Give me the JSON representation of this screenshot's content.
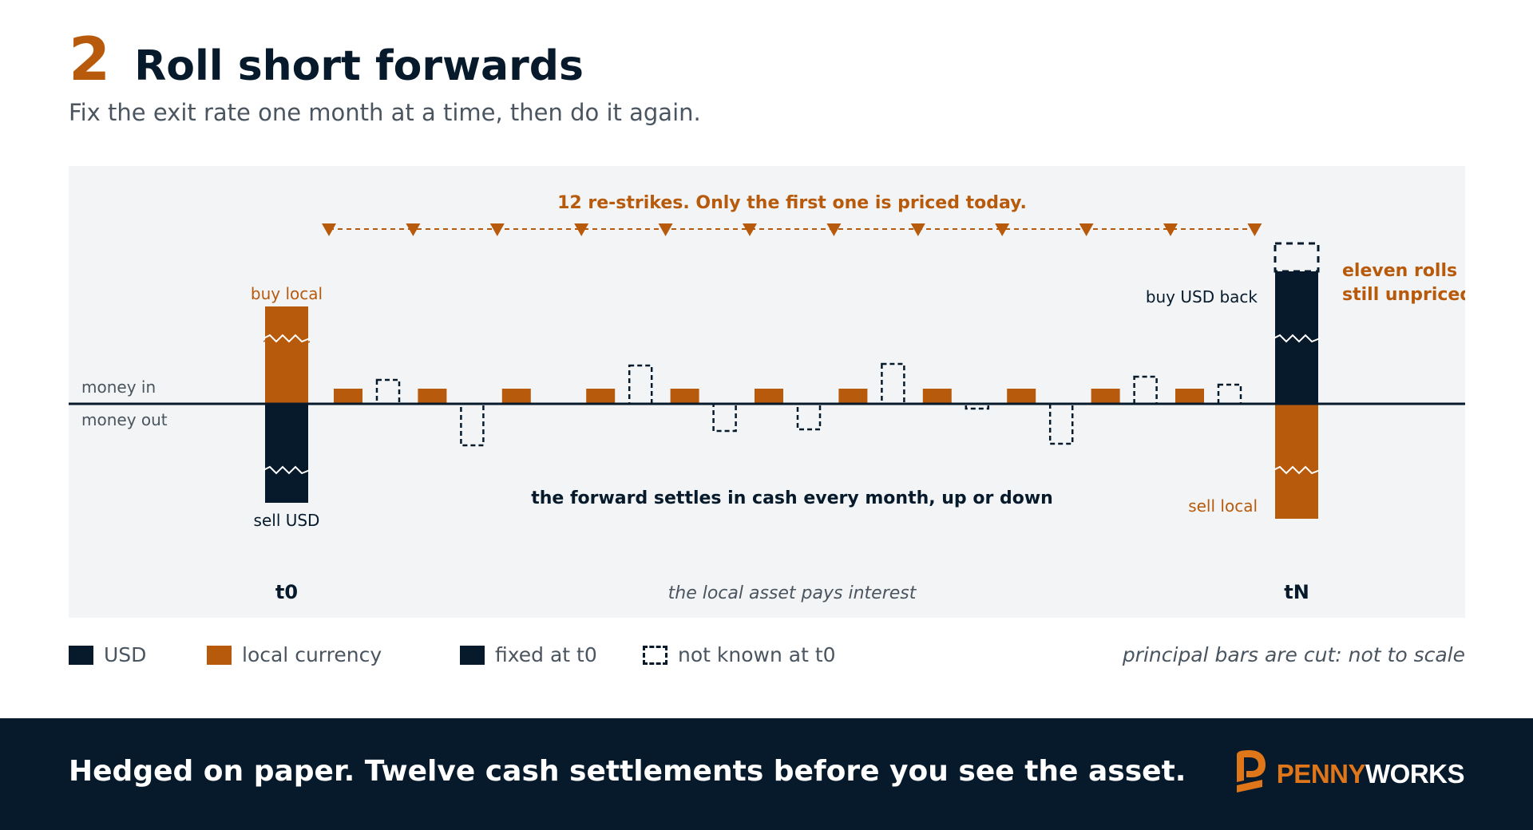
{
  "header": {
    "step": "2",
    "title": "Roll short forwards",
    "subtitle": "Fix the exit rate one month at a time, then do it again."
  },
  "diagram": {
    "restrike_caption": "12 re-strikes. Only the first one is priced today.",
    "restrike_count": 12,
    "axis_label_in": "money in",
    "axis_label_out": "money out",
    "left_top_label": "buy local",
    "left_bottom_label": "sell USD",
    "right_top_label": "buy USD back",
    "right_bottom_label": "sell local",
    "right_note_line1": "eleven rolls",
    "right_note_line2": "still unpriced",
    "middle_caption": "the forward settles in cash every month, up or down",
    "interest_caption": "the local asset pays interest",
    "start_label": "t0",
    "end_label": "tN",
    "monthly_interest_months": 11,
    "monthly_settlements": [
      {
        "month": 1,
        "direction": "in"
      },
      {
        "month": 2,
        "direction": "out"
      },
      {
        "month": 3,
        "direction": "flat"
      },
      {
        "month": 4,
        "direction": "in"
      },
      {
        "month": 5,
        "direction": "out"
      },
      {
        "month": 6,
        "direction": "out"
      },
      {
        "month": 7,
        "direction": "in"
      },
      {
        "month": 8,
        "direction": "out"
      },
      {
        "month": 9,
        "direction": "out"
      },
      {
        "month": 10,
        "direction": "in"
      },
      {
        "month": 11,
        "direction": "in"
      }
    ],
    "colors": {
      "usd": "#071a2c",
      "local": "#b85a0c",
      "axis": "#071a2c",
      "panel": "#f2f4f5"
    }
  },
  "legend": {
    "usd": "USD",
    "local": "local currency",
    "fixed": "fixed at t0",
    "unknown": "not known at t0",
    "note": "principal bars are cut: not to scale"
  },
  "footer": {
    "text": "Hedged on paper. Twelve cash settlements before you see the asset.",
    "logo_part1": "PENNY",
    "logo_part2": "WORKS"
  }
}
